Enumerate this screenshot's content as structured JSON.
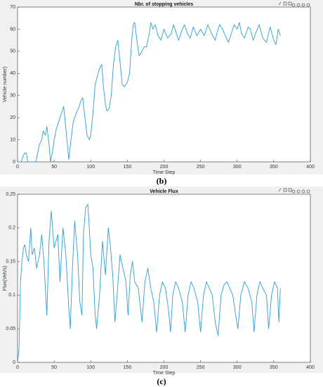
{
  "chart_data": [
    {
      "type": "line",
      "title": "Nbr. of stopping vehicles",
      "xlabel": "Time Step",
      "ylabel": "Vehicle number)",
      "caption": "(b)",
      "color": "#2c9fd9",
      "xlim": [
        0,
        400
      ],
      "xticks": [
        0,
        50,
        100,
        150,
        200,
        250,
        300,
        350,
        400
      ],
      "ylim": [
        0,
        70
      ],
      "yticks": [
        0,
        10,
        20,
        30,
        40,
        50,
        60,
        70
      ],
      "x": [
        0,
        5,
        8,
        10,
        12,
        14,
        20,
        25,
        30,
        33,
        35,
        38,
        40,
        43,
        45,
        48,
        50,
        53,
        56,
        60,
        63,
        66,
        70,
        73,
        76,
        80,
        83,
        87,
        89,
        92,
        95,
        98,
        100,
        103,
        106,
        110,
        113,
        115,
        117,
        120,
        122,
        125,
        128,
        131,
        134,
        137,
        140,
        143,
        146,
        150,
        153,
        156,
        158,
        160,
        163,
        166,
        170,
        173,
        176,
        180,
        182,
        185,
        188,
        192,
        196,
        200,
        205,
        210,
        213,
        216,
        220,
        225,
        228,
        232,
        236,
        240,
        245,
        250,
        255,
        260,
        265,
        270,
        273,
        276,
        280,
        284,
        288,
        292,
        296,
        300,
        303,
        306,
        310,
        315,
        318,
        322,
        325,
        330,
        335,
        340,
        345,
        350,
        353,
        356,
        358,
        359
      ],
      "values": [
        0,
        0,
        3,
        4,
        4,
        0,
        0,
        0,
        8,
        10,
        14,
        12,
        16,
        8,
        0,
        5,
        10,
        15,
        18,
        22,
        25,
        15,
        1,
        10,
        18,
        22,
        24,
        28,
        29,
        20,
        12,
        10,
        12,
        22,
        35,
        40,
        43,
        44,
        35,
        26,
        23,
        24,
        30,
        44,
        52,
        55,
        45,
        35,
        34,
        36,
        40,
        55,
        62,
        63,
        55,
        48,
        50,
        52,
        52,
        58,
        63,
        60,
        62,
        57,
        55,
        60,
        56,
        58,
        62,
        59,
        55,
        60,
        62,
        58,
        56,
        61,
        57,
        60,
        57,
        62,
        58,
        55,
        59,
        62,
        60,
        57,
        54,
        58,
        62,
        60,
        63,
        58,
        56,
        61,
        60,
        55,
        58,
        62,
        56,
        54,
        61,
        55,
        53,
        60,
        58,
        57
      ]
    },
    {
      "type": "line",
      "title": "Vehicle Flux",
      "xlabel": "Time Step",
      "ylabel": "Flux(Veh/s)",
      "caption": "(c)",
      "color": "#2c9fd9",
      "xlim": [
        0,
        400
      ],
      "xticks": [
        0,
        50,
        100,
        150,
        200,
        250,
        300,
        350,
        400
      ],
      "ylim": [
        0,
        0.25
      ],
      "yticks": [
        0,
        0.05,
        0.1,
        0.15,
        0.2,
        0.25
      ],
      "x": [
        0,
        2,
        4,
        6,
        8,
        10,
        12,
        15,
        18,
        20,
        23,
        26,
        30,
        33,
        36,
        40,
        43,
        46,
        50,
        55,
        58,
        62,
        66,
        70,
        72,
        75,
        78,
        82,
        85,
        88,
        90,
        93,
        96,
        98,
        100,
        103,
        106,
        108,
        112,
        116,
        120,
        124,
        127,
        130,
        133,
        136,
        140,
        144,
        148,
        151,
        154,
        157,
        160,
        165,
        170,
        174,
        178,
        182,
        186,
        190,
        194,
        198,
        202,
        206,
        209,
        212,
        216,
        220,
        225,
        229,
        233,
        237,
        241,
        246,
        250,
        254,
        258,
        262,
        266,
        270,
        274,
        278,
        282,
        286,
        290,
        294,
        298,
        301,
        305,
        310,
        315,
        320,
        323,
        327,
        331,
        335,
        340,
        343,
        347,
        351,
        355,
        357,
        359
      ],
      "values": [
        0,
        0.02,
        0.12,
        0.15,
        0.17,
        0.175,
        0.16,
        0.15,
        0.2,
        0.16,
        0.17,
        0.14,
        0.16,
        0.19,
        0.15,
        0.07,
        0.18,
        0.225,
        0.17,
        0.19,
        0.12,
        0.2,
        0.16,
        0.08,
        0.05,
        0.14,
        0.21,
        0.16,
        0.09,
        0.07,
        0.19,
        0.23,
        0.235,
        0.2,
        0.16,
        0.14,
        0.07,
        0.05,
        0.1,
        0.18,
        0.13,
        0.2,
        0.17,
        0.13,
        0.06,
        0.1,
        0.16,
        0.14,
        0.12,
        0.07,
        0.13,
        0.15,
        0.12,
        0.11,
        0.06,
        0.12,
        0.14,
        0.11,
        0.09,
        0.045,
        0.1,
        0.12,
        0.11,
        0.08,
        0.045,
        0.1,
        0.12,
        0.11,
        0.09,
        0.045,
        0.1,
        0.12,
        0.11,
        0.09,
        0.045,
        0.1,
        0.12,
        0.11,
        0.1,
        0.06,
        0.04,
        0.1,
        0.115,
        0.12,
        0.11,
        0.1,
        0.07,
        0.05,
        0.1,
        0.12,
        0.11,
        0.09,
        0.045,
        0.1,
        0.12,
        0.11,
        0.1,
        0.05,
        0.1,
        0.12,
        0.11,
        0.06,
        0.11
      ]
    }
  ]
}
